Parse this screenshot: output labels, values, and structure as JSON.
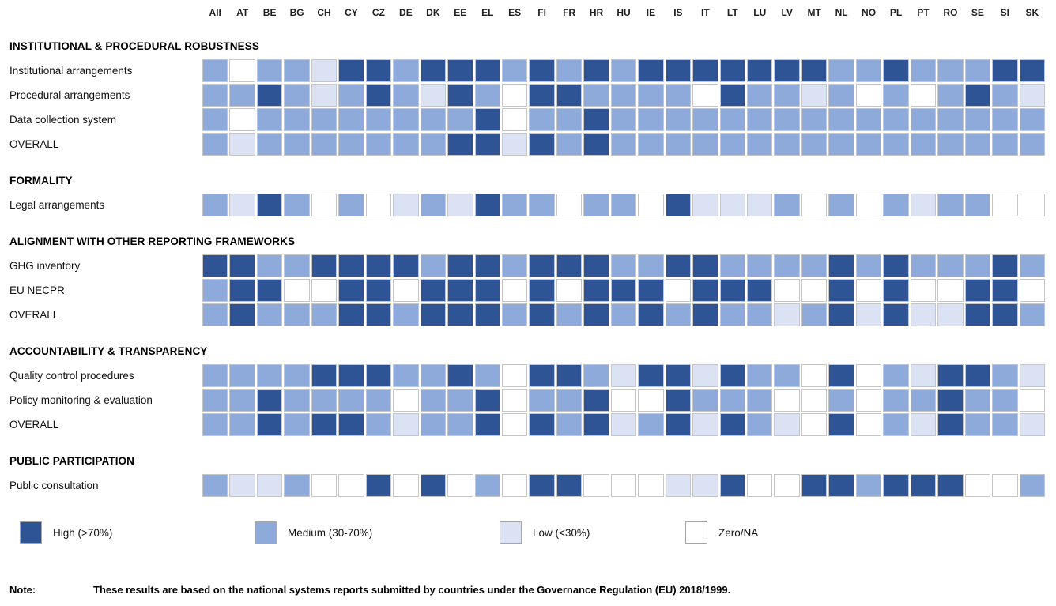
{
  "chart_data": {
    "type": "heatmap",
    "title": "",
    "columns": [
      "All",
      "AT",
      "BE",
      "BG",
      "CH",
      "CY",
      "CZ",
      "DE",
      "DK",
      "EE",
      "EL",
      "ES",
      "FI",
      "FR",
      "HR",
      "HU",
      "IE",
      "IS",
      "IT",
      "LT",
      "LU",
      "LV",
      "MT",
      "NL",
      "NO",
      "PL",
      "PT",
      "RO",
      "SE",
      "SI",
      "SK"
    ],
    "value_levels": {
      "H": "High (>70%)",
      "M": "Medium (30-70%)",
      "L": "Low (<30%)",
      "Z": "Zero/NA"
    },
    "colors": {
      "H": "#2F5496",
      "M": "#8EAADB",
      "L": "#DAE2F3",
      "Z": "#FFFFFF"
    },
    "sections": [
      {
        "title": "INSTITUTIONAL & PROCEDURAL ROBUSTNESS",
        "rows": [
          {
            "label": "Institutional arrangements",
            "values": [
              "M",
              "Z",
              "M",
              "M",
              "L",
              "H",
              "H",
              "M",
              "H",
              "H",
              "H",
              "M",
              "H",
              "M",
              "H",
              "M",
              "H",
              "H",
              "H",
              "H",
              "H",
              "H",
              "H",
              "M",
              "M",
              "H",
              "M",
              "M",
              "M",
              "H",
              "H"
            ]
          },
          {
            "label": "Procedural arrangements",
            "values": [
              "M",
              "M",
              "H",
              "M",
              "L",
              "M",
              "H",
              "M",
              "L",
              "H",
              "M",
              "Z",
              "H",
              "H",
              "M",
              "M",
              "M",
              "M",
              "Z",
              "H",
              "M",
              "M",
              "L",
              "M",
              "Z",
              "M",
              "Z",
              "M",
              "H",
              "M",
              "L"
            ]
          },
          {
            "label": "Data collection system",
            "values": [
              "M",
              "Z",
              "M",
              "M",
              "M",
              "M",
              "M",
              "M",
              "M",
              "M",
              "H",
              "Z",
              "M",
              "M",
              "H",
              "M",
              "M",
              "M",
              "M",
              "M",
              "M",
              "M",
              "M",
              "M",
              "M",
              "M",
              "M",
              "M",
              "M",
              "M",
              "M"
            ]
          },
          {
            "label": "OVERALL",
            "values": [
              "M",
              "L",
              "M",
              "M",
              "M",
              "M",
              "M",
              "M",
              "M",
              "H",
              "H",
              "L",
              "H",
              "M",
              "H",
              "M",
              "M",
              "M",
              "M",
              "M",
              "M",
              "M",
              "M",
              "M",
              "M",
              "M",
              "M",
              "M",
              "M",
              "M",
              "M"
            ]
          }
        ]
      },
      {
        "title": "FORMALITY",
        "rows": [
          {
            "label": "Legal arrangements",
            "values": [
              "M",
              "L",
              "H",
              "M",
              "Z",
              "M",
              "Z",
              "L",
              "M",
              "L",
              "H",
              "M",
              "M",
              "Z",
              "M",
              "M",
              "Z",
              "H",
              "L",
              "L",
              "L",
              "M",
              "Z",
              "M",
              "Z",
              "M",
              "L",
              "M",
              "M",
              "Z",
              "Z"
            ]
          }
        ]
      },
      {
        "title": "ALIGNMENT WITH OTHER REPORTING FRAMEWORKS",
        "rows": [
          {
            "label": "GHG inventory",
            "values": [
              "H",
              "H",
              "M",
              "M",
              "H",
              "H",
              "H",
              "H",
              "M",
              "H",
              "H",
              "M",
              "H",
              "H",
              "H",
              "M",
              "M",
              "H",
              "H",
              "M",
              "M",
              "M",
              "M",
              "H",
              "M",
              "H",
              "M",
              "M",
              "M",
              "H",
              "M"
            ]
          },
          {
            "label": "EU NECPR",
            "values": [
              "M",
              "H",
              "H",
              "Z",
              "Z",
              "H",
              "H",
              "Z",
              "H",
              "H",
              "H",
              "Z",
              "H",
              "Z",
              "H",
              "H",
              "H",
              "Z",
              "H",
              "H",
              "H",
              "Z",
              "Z",
              "H",
              "Z",
              "H",
              "Z",
              "Z",
              "H",
              "H",
              "Z"
            ]
          },
          {
            "label": "OVERALL",
            "values": [
              "M",
              "H",
              "M",
              "M",
              "M",
              "H",
              "H",
              "M",
              "H",
              "H",
              "H",
              "M",
              "H",
              "M",
              "H",
              "M",
              "H",
              "M",
              "H",
              "M",
              "M",
              "L",
              "M",
              "H",
              "L",
              "H",
              "L",
              "L",
              "H",
              "H",
              "M"
            ]
          }
        ]
      },
      {
        "title": "ACCOUNTABILITY & TRANSPARENCY",
        "rows": [
          {
            "label": "Quality control procedures",
            "values": [
              "M",
              "M",
              "M",
              "M",
              "H",
              "H",
              "H",
              "M",
              "M",
              "H",
              "M",
              "Z",
              "H",
              "H",
              "M",
              "L",
              "H",
              "H",
              "L",
              "H",
              "M",
              "M",
              "Z",
              "H",
              "Z",
              "M",
              "L",
              "H",
              "H",
              "M",
              "L"
            ]
          },
          {
            "label": "Policy monitoring & evaluation",
            "values": [
              "M",
              "M",
              "H",
              "M",
              "M",
              "M",
              "M",
              "Z",
              "M",
              "M",
              "H",
              "Z",
              "M",
              "M",
              "H",
              "Z",
              "Z",
              "H",
              "M",
              "M",
              "M",
              "Z",
              "Z",
              "M",
              "Z",
              "M",
              "M",
              "H",
              "M",
              "M",
              "Z"
            ]
          },
          {
            "label": "OVERALL",
            "values": [
              "M",
              "M",
              "H",
              "M",
              "H",
              "H",
              "M",
              "L",
              "M",
              "M",
              "H",
              "Z",
              "H",
              "M",
              "H",
              "L",
              "M",
              "H",
              "L",
              "H",
              "M",
              "L",
              "Z",
              "H",
              "Z",
              "M",
              "L",
              "H",
              "M",
              "M",
              "L"
            ]
          }
        ]
      },
      {
        "title": "PUBLIC PARTICIPATION",
        "rows": [
          {
            "label": "Public consultation",
            "values": [
              "M",
              "L",
              "L",
              "M",
              "Z",
              "Z",
              "H",
              "Z",
              "H",
              "Z",
              "M",
              "Z",
              "H",
              "H",
              "Z",
              "Z",
              "Z",
              "L",
              "L",
              "H",
              "Z",
              "Z",
              "H",
              "H",
              "M",
              "H",
              "H",
              "H",
              "Z",
              "Z",
              "M"
            ]
          }
        ]
      }
    ],
    "legend": [
      {
        "key": "H",
        "label": "High (>70%)"
      },
      {
        "key": "M",
        "label": "Medium (30-70%)"
      },
      {
        "key": "L",
        "label": "Low (<30%)"
      },
      {
        "key": "Z",
        "label": "Zero/NA"
      }
    ],
    "legend_positions": [
      13,
      310,
      620,
      855
    ],
    "note_label": "Note:",
    "note_text": "These results are based on the national systems reports submitted by countries under the Governance Regulation (EU) 2018/1999."
  }
}
